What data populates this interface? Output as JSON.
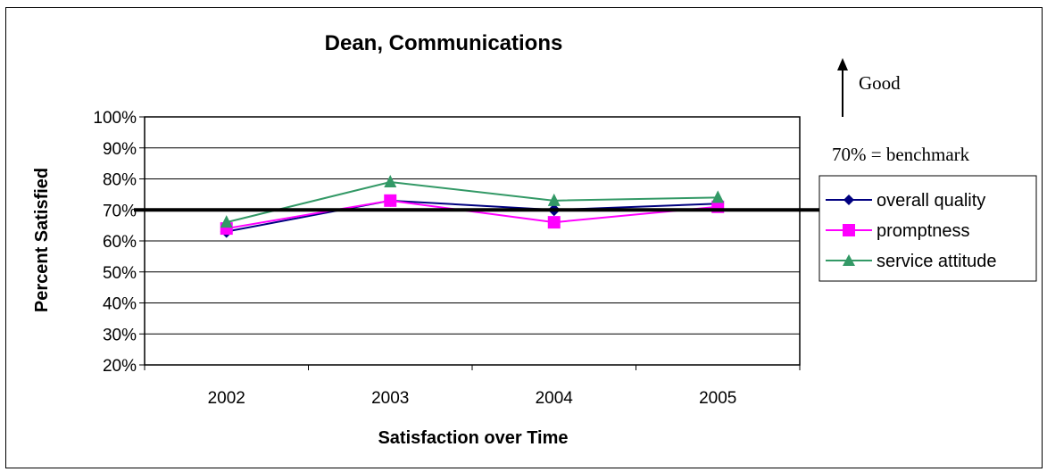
{
  "chart_data": {
    "type": "line",
    "title": "Dean, Communications",
    "xlabel": "Satisfaction over Time",
    "ylabel": "Percent Satisfied",
    "categories": [
      "2002",
      "2003",
      "2004",
      "2005"
    ],
    "ylim": [
      20,
      100
    ],
    "ytick_step": 10,
    "ytick_labels": [
      "20%",
      "30%",
      "40%",
      "50%",
      "60%",
      "70%",
      "80%",
      "90%",
      "100%"
    ],
    "grid": true,
    "legend_position": "right",
    "benchmark": {
      "value": 70,
      "label": "70% = benchmark"
    },
    "annotation": "Good",
    "series": [
      {
        "name": "overall quality",
        "values": [
          63,
          73,
          70,
          72
        ],
        "color": "#000080",
        "marker": "diamond"
      },
      {
        "name": "promptness",
        "values": [
          64,
          73,
          66,
          71
        ],
        "color": "#ff00ff",
        "marker": "square"
      },
      {
        "name": "service attitude",
        "values": [
          66,
          79,
          73,
          74
        ],
        "color": "#339966",
        "marker": "triangle"
      }
    ]
  }
}
